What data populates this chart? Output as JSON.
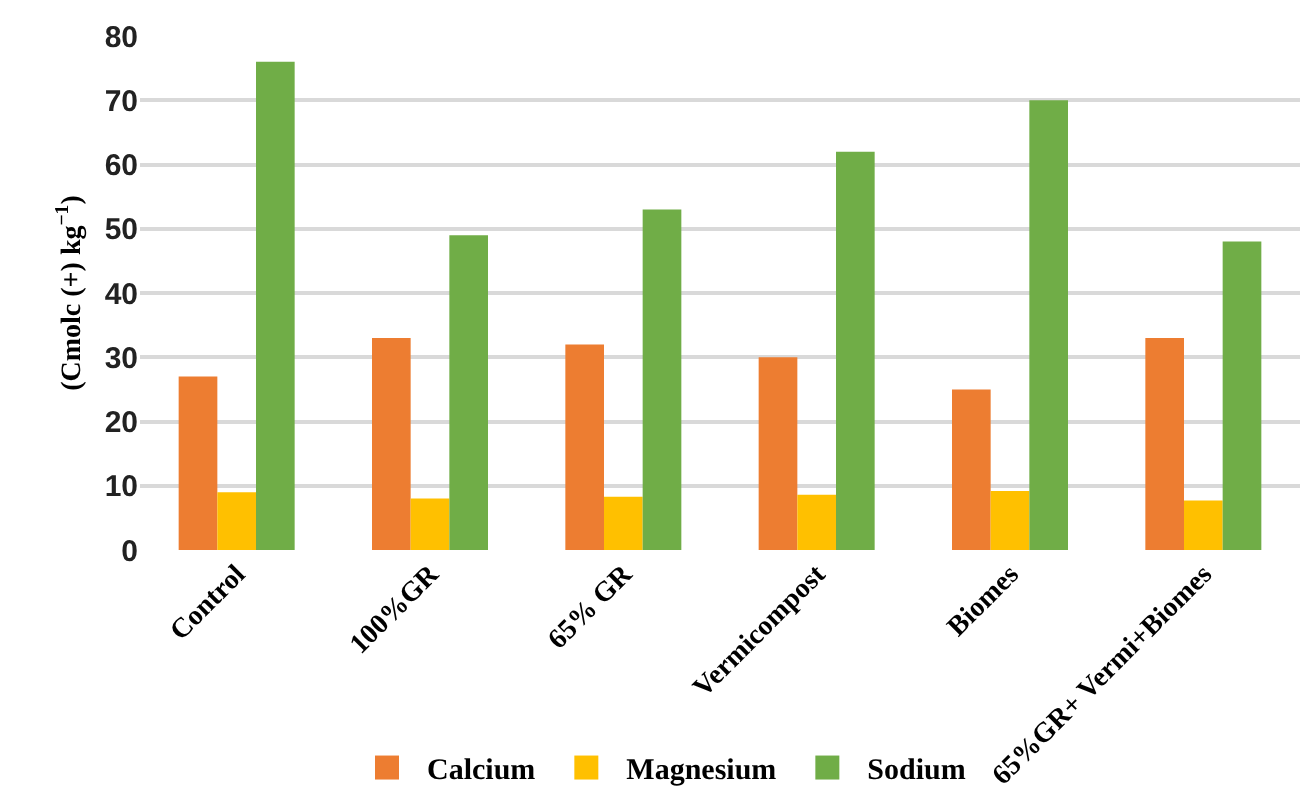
{
  "chart_data": {
    "type": "bar",
    "ylabel": "(Cmolc (+) kg$^{−1}$)",
    "categories": [
      "Control",
      "100%GR",
      "65% GR",
      "Vermicompost",
      "Biomes",
      "65%GR+ Vermi+Biomes"
    ],
    "series": [
      {
        "name": "Calcium",
        "color": "#ed7d31",
        "values": [
          27,
          33,
          32,
          30,
          25,
          33
        ]
      },
      {
        "name": "Magnesium",
        "color": "#ffc000",
        "values": [
          9,
          8,
          8.3,
          8.6,
          9.2,
          7.7
        ]
      },
      {
        "name": "Sodium",
        "color": "#70ad47",
        "values": [
          76,
          49,
          53,
          62,
          70,
          48
        ]
      }
    ],
    "ylim": [
      0,
      80
    ],
    "yticks": [
      0,
      10,
      20,
      30,
      40,
      50,
      60,
      70,
      80
    ],
    "grid": "y",
    "legend": "bottom"
  }
}
